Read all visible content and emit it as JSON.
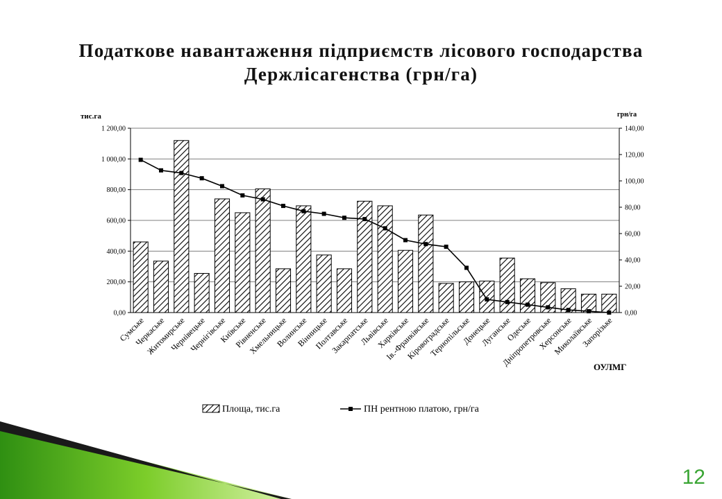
{
  "slide": {
    "title_line1": "Податкове навантаження підприємств лісового господарства",
    "title_line2": "Держлісагенства (грн/га)",
    "page_number": "12"
  },
  "chart_data": {
    "type": "bar",
    "categories": [
      "Сумське",
      "Черкаське",
      "Житомирське",
      "Чернівецьке",
      "Чернігівське",
      "Київське",
      "Рівненське",
      "Хмельницьке",
      "Волинське",
      "Вінницьке",
      "Полтавське",
      "Закарпатське",
      "Львівське",
      "Харківське",
      "Ів.-Франківське",
      "Кіровоградське",
      "Тернопільське",
      "Донецьке",
      "Луганське",
      "Одеське",
      "Дніпропетровське",
      "Херсонське",
      "Миколаївське",
      "Запорізьке"
    ],
    "series": [
      {
        "name": "Площа, тис.га",
        "type": "bar",
        "axis": "left",
        "values": [
          460,
          335,
          1120,
          255,
          740,
          650,
          805,
          285,
          695,
          375,
          285,
          725,
          695,
          405,
          635,
          190,
          200,
          205,
          355,
          220,
          195,
          155,
          120,
          120
        ]
      },
      {
        "name": "ПН рентною платою, грн/га",
        "type": "line",
        "axis": "right",
        "values": [
          116,
          108,
          106,
          102,
          96,
          89,
          86,
          81,
          77,
          75,
          72,
          71,
          64,
          55,
          52,
          50,
          34,
          10,
          8,
          6,
          4,
          2,
          1,
          0
        ]
      }
    ],
    "y_left": {
      "unit_label": "тис.га",
      "min": 0,
      "max": 1200,
      "step": 200,
      "ticks": [
        "0,00",
        "200,00",
        "400,00",
        "600,00",
        "800,00",
        "1 000,00",
        "1 200,00"
      ]
    },
    "y_right": {
      "unit_label": "грн/га",
      "min": 0,
      "max": 140,
      "step": 20,
      "ticks": [
        "0,00",
        "20,00",
        "40,00",
        "60,00",
        "80,00",
        "100,00",
        "120,00",
        "140,00"
      ]
    },
    "x_axis_label": "ОУЛМГ",
    "grid": true,
    "legend_position": "bottom"
  }
}
